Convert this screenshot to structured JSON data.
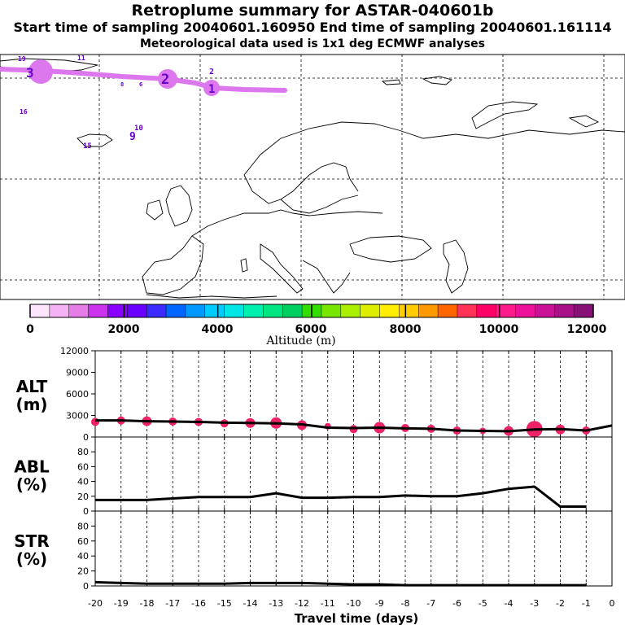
{
  "header": {
    "title": "Retroplume summary for ASTAR-040601b",
    "sampling_line": "Start time of sampling 20040601.160950     End time of sampling 20040601.161114",
    "met_line": "Meteorological data used is 1x1 deg ECMWF analyses"
  },
  "map": {
    "plume_color": "#dd77ee",
    "day_labels": [
      {
        "text": "19",
        "color": "#6600cc"
      },
      {
        "text": "11",
        "color": "#6600cc"
      },
      {
        "text": "3",
        "color": "#6600cc"
      },
      {
        "text": "2",
        "color": "#6600cc"
      },
      {
        "text": "2",
        "color": "#6600cc"
      },
      {
        "text": "1",
        "color": "#6600cc"
      },
      {
        "text": "16",
        "color": "#6600cc"
      },
      {
        "text": "10",
        "color": "#6600cc"
      },
      {
        "text": "9",
        "color": "#6600cc"
      },
      {
        "text": "15",
        "color": "#6600cc"
      },
      {
        "text": "8",
        "color": "#6600cc"
      },
      {
        "text": "6",
        "color": "#6600cc"
      }
    ]
  },
  "colorbar": {
    "label": "Altitude (m)",
    "tick_labels": [
      "0",
      "2000",
      "4000",
      "6000",
      "8000",
      "10000",
      "12000"
    ],
    "colors": [
      "#fde6fd",
      "#f5b3f5",
      "#e67de6",
      "#cc33ee",
      "#8a00ff",
      "#6a00ff",
      "#3b2bff",
      "#0066ff",
      "#0099ff",
      "#00ccff",
      "#00e6e6",
      "#00f0b0",
      "#00e680",
      "#00d060",
      "#33dd00",
      "#77e600",
      "#aaee00",
      "#ddee00",
      "#ffee00",
      "#ffcc00",
      "#ff9900",
      "#ff6600",
      "#ff3355",
      "#ff0066",
      "#ff1a8c",
      "#ee1199",
      "#cc1199",
      "#aa1188",
      "#881177"
    ]
  },
  "chart_data": [
    {
      "type": "line",
      "panel": "ALT",
      "ylabel": "ALT\n(m)",
      "ylabel_line1": "ALT",
      "ylabel_line2": "(m)",
      "ylim": [
        0,
        12000
      ],
      "yticks": [
        0,
        3000,
        6000,
        9000,
        12000
      ],
      "xlim": [
        -20,
        0
      ],
      "x": [
        -20,
        -19,
        -18,
        -17,
        -16,
        -15,
        -14,
        -13,
        -12,
        -11,
        -10,
        -9,
        -8,
        -7,
        -6,
        -5,
        -4,
        -3,
        -2,
        -1,
        0
      ],
      "values": [
        2300,
        2300,
        2200,
        2150,
        2100,
        2000,
        1950,
        1900,
        1750,
        1300,
        1250,
        1300,
        1200,
        1150,
        900,
        850,
        800,
        1050,
        1100,
        900,
        1600
      ],
      "markers": {
        "color": "#ee2266",
        "x": [
          -20,
          -19,
          -18,
          -17,
          -16,
          -15,
          -14,
          -13,
          -12,
          -11,
          -10,
          -9,
          -8,
          -7,
          -6,
          -5,
          -4,
          -3,
          -2,
          -1
        ],
        "y": [
          2100,
          2300,
          2200,
          2150,
          2100,
          1900,
          1950,
          1950,
          1650,
          1500,
          1100,
          1300,
          1250,
          1150,
          900,
          850,
          850,
          1100,
          1050,
          900
        ],
        "size": [
          5,
          5,
          6,
          5,
          5,
          5,
          6,
          7,
          6,
          4,
          5,
          7,
          5,
          5,
          5,
          4,
          6,
          10,
          6,
          5
        ]
      }
    },
    {
      "type": "line",
      "panel": "ABL",
      "ylabel_line1": "ABL",
      "ylabel_line2": "(%)",
      "ylim": [
        0,
        100
      ],
      "yticks": [
        0,
        20,
        40,
        60,
        80
      ],
      "xlim": [
        -20,
        0
      ],
      "x": [
        -20,
        -19,
        -18,
        -17,
        -16,
        -15,
        -14,
        -13,
        -12,
        -11,
        -10,
        -9,
        -8,
        -7,
        -6,
        -5,
        -4,
        -3,
        -2,
        -1
      ],
      "values": [
        15,
        15,
        15,
        17,
        19,
        19,
        19,
        24,
        18,
        18,
        19,
        19,
        21,
        20,
        20,
        24,
        30,
        33,
        6,
        6
      ]
    },
    {
      "type": "line",
      "panel": "STR",
      "ylabel_line1": "STR",
      "ylabel_line2": "(%)",
      "ylim": [
        0,
        100
      ],
      "yticks": [
        0,
        20,
        40,
        60,
        80
      ],
      "xlim": [
        -20,
        0
      ],
      "x": [
        -20,
        -19,
        -18,
        -17,
        -16,
        -15,
        -14,
        -13,
        -12,
        -11,
        -10,
        -9,
        -8,
        -7,
        -6,
        -5,
        -4,
        -3,
        -2,
        -1
      ],
      "values": [
        5,
        4,
        3,
        3,
        3,
        3,
        4,
        4,
        4,
        3,
        2,
        2,
        1,
        1,
        1,
        1,
        1,
        1,
        1,
        1
      ]
    }
  ],
  "x_axis": {
    "label": "Travel time (days)",
    "tick_labels": [
      "-20",
      "-19",
      "-18",
      "-17",
      "-16",
      "-15",
      "-14",
      "-13",
      "-12",
      "-11",
      "-10",
      "-9",
      "-8",
      "-7",
      "-6",
      "-5",
      "-4",
      "-3",
      "-2",
      "-1",
      "0"
    ]
  }
}
